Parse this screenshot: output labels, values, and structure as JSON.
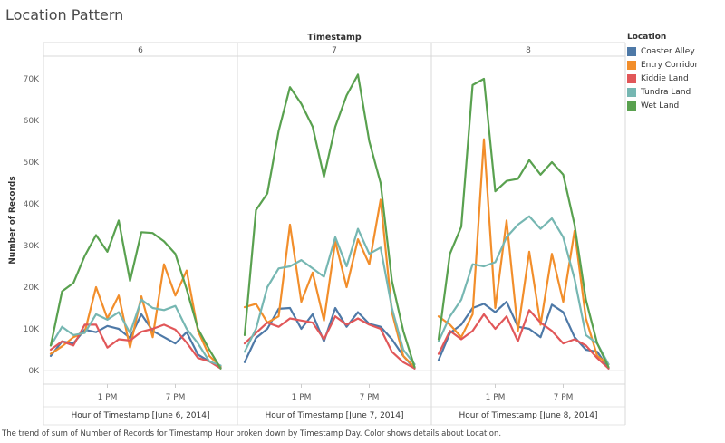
{
  "title": "Location Pattern",
  "caption": "The trend of sum of Number of Records for Timestamp Hour broken down by Timestamp Day.  Color shows details about Location.",
  "chart_data": {
    "type": "line",
    "column_header": "Timestamp",
    "ylabel": "Number of Records",
    "ylim": [
      0,
      75000
    ],
    "yticks": [
      0,
      10000,
      20000,
      30000,
      40000,
      50000,
      60000,
      70000
    ],
    "ytick_labels": [
      "0K",
      "10K",
      "20K",
      "30K",
      "40K",
      "50K",
      "60K",
      "70K"
    ],
    "xtick_labels": [
      "1 PM",
      "7 PM"
    ],
    "xtick_positions": [
      13,
      19
    ],
    "xrange": [
      8,
      24
    ],
    "x_hours": [
      8,
      9,
      10,
      11,
      12,
      13,
      14,
      15,
      16,
      17,
      18,
      19,
      20,
      21,
      22,
      23
    ],
    "legend_title": "Location",
    "panels": [
      {
        "header": "6",
        "xlabel": "Hour of Timestamp [June 6, 2014]",
        "series": [
          {
            "name": "Coaster Alley",
            "color": "#4e79a7",
            "values": [
              3500,
              7000,
              6500,
              9800,
              9200,
              10700,
              10000,
              7800,
              13500,
              9500,
              8000,
              6500,
              9200,
              3800,
              2200,
              800
            ]
          },
          {
            "name": "Entry Corridor",
            "color": "#f28e2b",
            "values": [
              4000,
              5800,
              8000,
              9200,
              20000,
              12500,
              18000,
              5500,
              17800,
              8000,
              25500,
              18000,
              24000,
              9500,
              3500,
              1000
            ]
          },
          {
            "name": "Kiddie Land",
            "color": "#e15759",
            "values": [
              5000,
              7000,
              6000,
              11000,
              11000,
              5500,
              7500,
              7200,
              9300,
              10000,
              11000,
              9800,
              6700,
              3000,
              2200,
              500
            ]
          },
          {
            "name": "Tundra Land",
            "color": "#76b7b2",
            "values": [
              6000,
              10500,
              8500,
              9000,
              13500,
              12200,
              14000,
              9000,
              17000,
              15000,
              14500,
              15500,
              10000,
              6500,
              2200,
              1200
            ]
          },
          {
            "name": "Wet Land",
            "color": "#59a14f",
            "values": [
              6000,
              19000,
              21000,
              27500,
              32500,
              28500,
              36000,
              21500,
              33200,
              33000,
              31000,
              28000,
              19500,
              10000,
              5000,
              500
            ]
          }
        ]
      },
      {
        "header": "7",
        "xlabel": "Hour of Timestamp [June 7, 2014]",
        "series": [
          {
            "name": "Coaster Alley",
            "color": "#4e79a7",
            "values": [
              2000,
              7800,
              10000,
              14800,
              15000,
              10000,
              13500,
              7000,
              15000,
              10500,
              14000,
              11200,
              10500,
              7500,
              3500,
              500
            ]
          },
          {
            "name": "Entry Corridor",
            "color": "#f28e2b",
            "values": [
              15200,
              16000,
              11500,
              13000,
              35000,
              16500,
              23500,
              12000,
              31000,
              20000,
              31500,
              25500,
              41000,
              14000,
              3500,
              800
            ]
          },
          {
            "name": "Kiddie Land",
            "color": "#e15759",
            "values": [
              6500,
              9000,
              11500,
              10500,
              12500,
              12000,
              11500,
              7500,
              13000,
              11000,
              12500,
              11000,
              10000,
              4500,
              2000,
              500
            ]
          },
          {
            "name": "Tundra Land",
            "color": "#76b7b2",
            "values": [
              4500,
              10000,
              20000,
              24500,
              25000,
              26500,
              24500,
              22500,
              32000,
              25000,
              34000,
              28000,
              29500,
              15000,
              5000,
              1500
            ]
          },
          {
            "name": "Wet Land",
            "color": "#59a14f",
            "values": [
              8500,
              38500,
              42500,
              57500,
              68000,
              64000,
              58500,
              46500,
              58500,
              66000,
              71000,
              55000,
              45000,
              21500,
              9500,
              800
            ]
          }
        ]
      },
      {
        "header": "8",
        "xlabel": "Hour of Timestamp [June 8, 2014]",
        "series": [
          {
            "name": "Coaster Alley",
            "color": "#4e79a7",
            "values": [
              2500,
              9000,
              11000,
              15000,
              16000,
              14000,
              16500,
              10500,
              10000,
              8000,
              15800,
              14000,
              8000,
              5000,
              4500,
              500
            ]
          },
          {
            "name": "Entry Corridor",
            "color": "#f28e2b",
            "values": [
              13000,
              11000,
              8000,
              13500,
              55500,
              15000,
              36000,
              9500,
              28500,
              11000,
              28000,
              16500,
              33500,
              12500,
              3500,
              1500
            ]
          },
          {
            "name": "Kiddie Land",
            "color": "#e15759",
            "values": [
              4000,
              9500,
              7500,
              9500,
              13500,
              10000,
              13000,
              7000,
              14500,
              11500,
              9500,
              6500,
              7500,
              6000,
              3000,
              500
            ]
          },
          {
            "name": "Tundra Land",
            "color": "#76b7b2",
            "values": [
              7000,
              13000,
              17000,
              25500,
              25000,
              26000,
              32000,
              35000,
              37000,
              34000,
              36500,
              32000,
              22000,
              8500,
              6500,
              1500
            ]
          },
          {
            "name": "Wet Land",
            "color": "#59a14f",
            "values": [
              7500,
              28000,
              34500,
              68500,
              70000,
              43000,
              45500,
              46000,
              50500,
              47000,
              50000,
              47000,
              35000,
              17000,
              6500,
              800
            ]
          }
        ]
      }
    ]
  }
}
